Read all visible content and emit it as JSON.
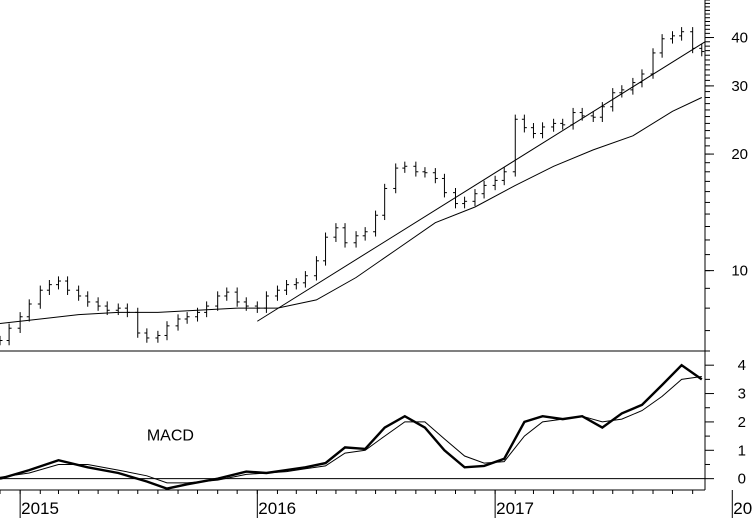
{
  "chart_data": [
    {
      "type": "line",
      "panel": "price",
      "subtype": "bar-ohlc",
      "title": "",
      "xlabel": "",
      "ylabel": "",
      "scale": "log",
      "ylim": [
        6.2,
        50
      ],
      "yticks": [
        10,
        20,
        30,
        40
      ],
      "ytick_labels": [
        "10",
        "20",
        "30",
        "40"
      ],
      "x_domain": [
        "2014-12-01",
        "2017-11-20"
      ],
      "grid": false,
      "legend": "none",
      "series": [
        {
          "kind": "price-bars",
          "x": [
            "2014-12-01",
            "2014-12-15",
            "2015-01-01",
            "2015-01-15",
            "2015-02-01",
            "2015-02-15",
            "2015-03-01",
            "2015-03-15",
            "2015-04-01",
            "2015-04-15",
            "2015-05-01",
            "2015-05-15",
            "2015-06-01",
            "2015-06-15",
            "2015-07-01",
            "2015-07-15",
            "2015-08-01",
            "2015-08-15",
            "2015-09-01",
            "2015-09-15",
            "2015-10-01",
            "2015-10-15",
            "2015-11-01",
            "2015-11-15",
            "2015-12-01",
            "2015-12-15",
            "2016-01-01",
            "2016-01-15",
            "2016-02-01",
            "2016-02-15",
            "2016-03-01",
            "2016-03-15",
            "2016-04-01",
            "2016-04-15",
            "2016-05-01",
            "2016-05-15",
            "2016-06-01",
            "2016-06-15",
            "2016-07-01",
            "2016-07-15",
            "2016-08-01",
            "2016-08-15",
            "2016-09-01",
            "2016-09-15",
            "2016-10-01",
            "2016-10-15",
            "2016-11-01",
            "2016-11-15",
            "2016-12-01",
            "2016-12-15",
            "2017-01-01",
            "2017-01-15",
            "2017-02-01",
            "2017-02-15",
            "2017-03-01",
            "2017-03-15",
            "2017-04-01",
            "2017-04-15",
            "2017-05-01",
            "2017-05-15",
            "2017-06-01",
            "2017-06-15",
            "2017-07-01",
            "2017-07-15",
            "2017-08-01",
            "2017-08-15",
            "2017-09-01",
            "2017-09-15",
            "2017-10-01",
            "2017-10-15",
            "2017-11-01",
            "2017-11-15"
          ],
          "values": [
            6.6,
            7.1,
            7.6,
            8.2,
            8.9,
            9.2,
            9.4,
            8.9,
            8.6,
            8.3,
            8.1,
            7.9,
            8.0,
            7.8,
            6.9,
            6.7,
            6.8,
            7.2,
            7.5,
            7.6,
            7.8,
            8.1,
            8.6,
            8.8,
            8.3,
            8.1,
            8.0,
            8.6,
            8.9,
            9.2,
            9.3,
            9.7,
            10.6,
            12.2,
            12.9,
            11.8,
            12.3,
            12.6,
            13.9,
            16.3,
            18.4,
            18.6,
            18.0,
            17.9,
            17.3,
            15.9,
            14.9,
            15.1,
            15.8,
            16.6,
            17.1,
            18.0,
            24.6,
            23.4,
            22.6,
            23.5,
            24.0,
            23.8,
            25.6,
            25.1,
            24.9,
            26.5,
            28.8,
            29.3,
            30.6,
            32.2,
            36.5,
            39.7,
            40.4,
            41.4,
            37.5,
            36.8
          ]
        },
        {
          "kind": "moving-average",
          "x": [
            "2014-12-01",
            "2015-02-01",
            "2015-04-01",
            "2015-06-01",
            "2015-08-01",
            "2015-10-01",
            "2015-12-01",
            "2016-02-01",
            "2016-04-01",
            "2016-06-01",
            "2016-08-01",
            "2016-10-01",
            "2016-12-01",
            "2017-02-01",
            "2017-04-01",
            "2017-06-01",
            "2017-08-01",
            "2017-10-01",
            "2017-11-15"
          ],
          "values": [
            7.3,
            7.5,
            7.7,
            7.8,
            7.8,
            7.9,
            8.0,
            8.0,
            8.4,
            9.6,
            11.3,
            13.3,
            14.6,
            16.6,
            18.6,
            20.5,
            22.3,
            25.8,
            28.0
          ]
        },
        {
          "kind": "trendline",
          "x": [
            "2016-01-01",
            "2017-11-20"
          ],
          "values": [
            7.4,
            39.0
          ]
        }
      ]
    },
    {
      "type": "line",
      "panel": "indicator",
      "title": "",
      "xlabel": "",
      "ylabel": "",
      "ylim": [
        -0.4,
        4.5
      ],
      "yticks": [
        0,
        1,
        2,
        3,
        4
      ],
      "ytick_labels": [
        "0",
        "1",
        "2",
        "3",
        "4"
      ],
      "x_domain": [
        "2014-12-01",
        "2017-11-20"
      ],
      "xticks": [
        "2015-01-01",
        "2016-01-01",
        "2017-01-01",
        "2018-01-01"
      ],
      "xtick_labels": [
        "2015",
        "2016",
        "2017",
        "20"
      ],
      "grid": false,
      "legend": "none",
      "annotations": [
        {
          "text": "MACD",
          "x": "2015-07-15",
          "y": 1.35
        }
      ],
      "series": [
        {
          "kind": "macd",
          "x": [
            "2014-12-01",
            "2015-01-15",
            "2015-03-01",
            "2015-04-15",
            "2015-06-01",
            "2015-07-15",
            "2015-08-15",
            "2015-09-15",
            "2015-11-01",
            "2015-12-15",
            "2016-01-15",
            "2016-02-15",
            "2016-03-15",
            "2016-04-15",
            "2016-05-15",
            "2016-06-15",
            "2016-07-15",
            "2016-08-15",
            "2016-09-15",
            "2016-10-15",
            "2016-11-15",
            "2016-12-15",
            "2017-01-15",
            "2017-02-15",
            "2017-03-15",
            "2017-04-15",
            "2017-05-15",
            "2017-06-15",
            "2017-07-15",
            "2017-08-15",
            "2017-09-15",
            "2017-10-15",
            "2017-11-15"
          ],
          "values": [
            0.0,
            0.3,
            0.65,
            0.4,
            0.2,
            -0.1,
            -0.35,
            -0.2,
            0.0,
            0.25,
            0.2,
            0.3,
            0.4,
            0.55,
            1.1,
            1.05,
            1.8,
            2.2,
            1.8,
            1.0,
            0.4,
            0.45,
            0.7,
            2.0,
            2.2,
            2.1,
            2.2,
            1.8,
            2.3,
            2.6,
            3.3,
            4.0,
            3.5
          ]
        },
        {
          "kind": "signal",
          "x": [
            "2014-12-01",
            "2015-01-15",
            "2015-03-01",
            "2015-04-15",
            "2015-06-01",
            "2015-07-15",
            "2015-08-15",
            "2015-09-15",
            "2015-11-01",
            "2015-12-15",
            "2016-01-15",
            "2016-02-15",
            "2016-03-15",
            "2016-04-15",
            "2016-05-15",
            "2016-06-15",
            "2016-07-15",
            "2016-08-15",
            "2016-09-15",
            "2016-10-15",
            "2016-11-15",
            "2016-12-15",
            "2017-01-15",
            "2017-02-15",
            "2017-03-15",
            "2017-04-15",
            "2017-05-15",
            "2017-06-15",
            "2017-07-15",
            "2017-08-15",
            "2017-09-15",
            "2017-10-15",
            "2017-11-15"
          ],
          "values": [
            0.05,
            0.2,
            0.5,
            0.5,
            0.3,
            0.1,
            -0.15,
            -0.15,
            -0.05,
            0.15,
            0.2,
            0.25,
            0.35,
            0.45,
            0.9,
            1.0,
            1.5,
            2.0,
            2.0,
            1.4,
            0.8,
            0.55,
            0.6,
            1.5,
            2.0,
            2.1,
            2.2,
            2.0,
            2.1,
            2.4,
            2.9,
            3.5,
            3.6
          ]
        }
      ]
    }
  ]
}
